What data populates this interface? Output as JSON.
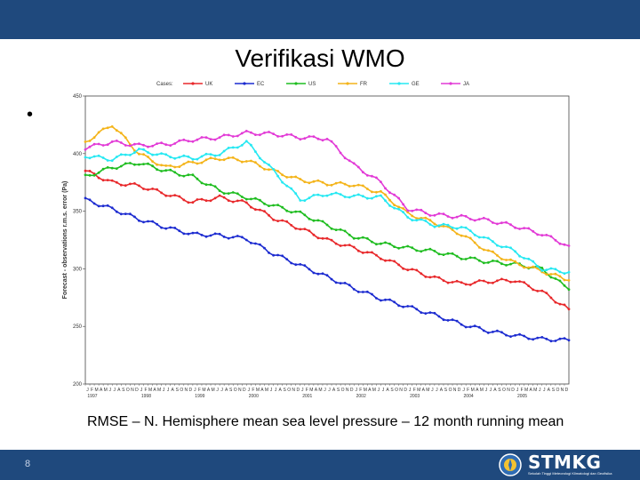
{
  "slide": {
    "title": "Verifikasi WMO",
    "bullet": "•",
    "caption": "RMSE – N. Hemisphere mean sea level pressure – 12 month running mean",
    "page_number": "8",
    "colors": {
      "bar": "#1f497d"
    }
  },
  "logo": {
    "text": "STMKG",
    "subtitle": "Sekolah Tinggi Meteorologi Klimatologi dan Geofisika"
  },
  "chart_data": {
    "type": "line",
    "title": "",
    "legend_title": "Cases:",
    "xlabel": "",
    "ylabel": "Forecast - observations r.m.s. error (Pa)",
    "ylim": [
      200,
      450
    ],
    "yticks": [
      200,
      250,
      300,
      350,
      400,
      450
    ],
    "x_range": [
      1997.0,
      2006.0
    ],
    "x_years": [
      "1997",
      "1998",
      "1999",
      "2000",
      "2001",
      "2002",
      "2003",
      "2004",
      "2005"
    ],
    "month_labels": "J F M A M J J A S O N D",
    "x": [
      1997.0,
      1997.5,
      1998.0,
      1998.5,
      1999.0,
      1999.5,
      2000.0,
      2000.5,
      2001.0,
      2001.5,
      2002.0,
      2002.5,
      2003.0,
      2003.5,
      2004.0,
      2004.5,
      2005.0,
      2005.5,
      2006.0
    ],
    "series": [
      {
        "name": "UK",
        "color": "#e8282b",
        "values": [
          385,
          375,
          372,
          365,
          358,
          362,
          357,
          344,
          335,
          325,
          318,
          310,
          300,
          292,
          287,
          289,
          290,
          280,
          265
        ]
      },
      {
        "name": "EC",
        "color": "#1c2bd0",
        "values": [
          360,
          352,
          343,
          336,
          330,
          329,
          326,
          313,
          303,
          293,
          283,
          274,
          267,
          260,
          252,
          246,
          242,
          239,
          238
        ]
      },
      {
        "name": "US",
        "color": "#1fbd20",
        "values": [
          380,
          388,
          392,
          385,
          380,
          368,
          362,
          355,
          348,
          338,
          328,
          322,
          318,
          315,
          310,
          306,
          304,
          300,
          282
        ]
      },
      {
        "name": "FR",
        "color": "#f4b41a",
        "values": [
          410,
          425,
          400,
          388,
          392,
          396,
          394,
          385,
          377,
          374,
          373,
          366,
          348,
          340,
          330,
          315,
          305,
          298,
          290
        ]
      },
      {
        "name": "GE",
        "color": "#26e8f2",
        "values": [
          398,
          395,
          403,
          398,
          396,
          400,
          410,
          385,
          360,
          365,
          363,
          362,
          345,
          338,
          336,
          325,
          315,
          300,
          297
        ]
      },
      {
        "name": "JA",
        "color": "#e23ad6",
        "values": [
          405,
          410,
          407,
          408,
          412,
          414,
          418,
          417,
          414,
          413,
          390,
          375,
          352,
          347,
          345,
          342,
          337,
          330,
          320
        ]
      }
    ]
  }
}
